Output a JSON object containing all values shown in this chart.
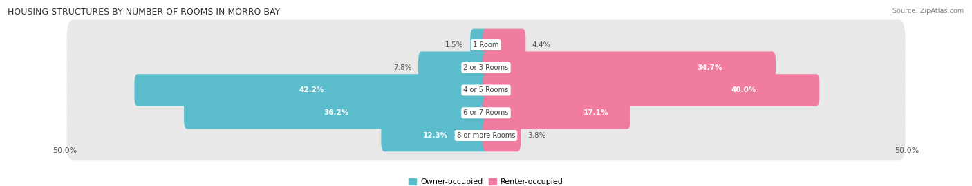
{
  "title": "HOUSING STRUCTURES BY NUMBER OF ROOMS IN MORRO BAY",
  "source": "Source: ZipAtlas.com",
  "categories": [
    "1 Room",
    "2 or 3 Rooms",
    "4 or 5 Rooms",
    "6 or 7 Rooms",
    "8 or more Rooms"
  ],
  "owner_values": [
    1.5,
    7.8,
    42.2,
    36.2,
    12.3
  ],
  "renter_values": [
    4.4,
    34.7,
    40.0,
    17.1,
    3.8
  ],
  "owner_color": "#5bbccc",
  "renter_color": "#f07ca0",
  "axis_max": 50.0,
  "axis_label_left": "50.0%",
  "axis_label_right": "50.0%",
  "figure_bg": "#ffffff",
  "bar_bg_color": "#e8e8e8",
  "bar_height": 0.62,
  "inside_threshold_owner": 8.0,
  "inside_threshold_renter": 8.0,
  "legend_owner": "Owner-occupied",
  "legend_renter": "Renter-occupied"
}
